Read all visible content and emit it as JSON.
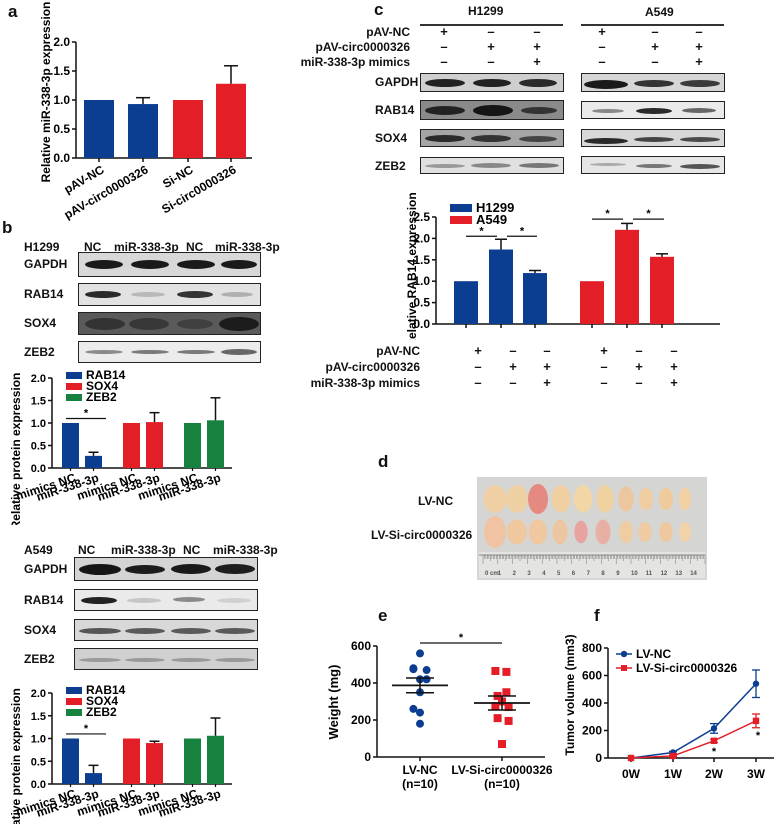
{
  "colors": {
    "blue": "#0b3d91",
    "red": "#e41e26",
    "green": "#17813f",
    "axis": "#111111"
  },
  "panels": {
    "a": {
      "letter": "a",
      "chart": {
        "type": "bar",
        "ylabel": "Relative miR-338-3p expression",
        "ylim": [
          0,
          2.0
        ],
        "yticks": [
          "0.0",
          "0.5",
          "1.0",
          "1.5",
          "2.0"
        ],
        "categories": [
          "pAV-NC",
          "pAV-circ0000326",
          "Si-NC",
          "Si-circ0000326"
        ],
        "values": [
          1.0,
          0.93,
          1.0,
          1.28
        ],
        "errors": [
          0,
          0.11,
          0,
          0.31
        ],
        "bar_colors": [
          "blue",
          "blue",
          "red",
          "red"
        ]
      }
    },
    "b": {
      "letter": "b",
      "h1299": {
        "cell_line": "H1299",
        "lanes": [
          "NC",
          "miR-338-3p",
          "NC",
          "miR-338-3p"
        ],
        "proteins": [
          "GAPDH",
          "RAB14",
          "SOX4",
          "ZEB2"
        ],
        "chart": {
          "type": "bar",
          "ylabel": "Relative protein expression",
          "ylim": [
            0,
            2.0
          ],
          "yticks": [
            "0.0",
            "0.5",
            "1.0",
            "1.5",
            "2.0"
          ],
          "legend": [
            "RAB14",
            "SOX4",
            "ZEB2"
          ],
          "categories": [
            "mimics NC",
            "miR-338-3p",
            "mimics NC",
            "miR-338-3p",
            "mimics NC",
            "miR-338-3p"
          ],
          "values": [
            1.0,
            0.27,
            1.0,
            1.02,
            1.0,
            1.06
          ],
          "errors": [
            0,
            0.08,
            0,
            0.21,
            0,
            0.5
          ],
          "bar_colors": [
            "blue",
            "blue",
            "red",
            "red",
            "green",
            "green"
          ],
          "significance": "*"
        }
      },
      "a549": {
        "cell_line": "A549",
        "lanes": [
          "NC",
          "miR-338-3p",
          "NC",
          "miR-338-3p"
        ],
        "proteins": [
          "GAPDH",
          "RAB14",
          "SOX4",
          "ZEB2"
        ],
        "chart": {
          "type": "bar",
          "ylabel": "Relative protein expression",
          "ylim": [
            0,
            2.0
          ],
          "yticks": [
            "0.0",
            "0.5",
            "1.0",
            "1.5",
            "2.0"
          ],
          "legend": [
            "RAB14",
            "SOX4",
            "ZEB2"
          ],
          "categories": [
            "mimics NC",
            "miR-338-3p",
            "mimics NC",
            "miR-338-3p",
            "mimics NC",
            "miR-338-3p"
          ],
          "values": [
            1.0,
            0.24,
            1.0,
            0.9,
            1.0,
            1.06
          ],
          "errors": [
            0,
            0.17,
            0,
            0.04,
            0,
            0.39
          ],
          "bar_colors": [
            "blue",
            "blue",
            "red",
            "red",
            "green",
            "green"
          ],
          "significance": "*"
        }
      }
    },
    "c": {
      "letter": "c",
      "cell_lines": [
        "H1299",
        "A549"
      ],
      "conditions": [
        "pAV-NC",
        "pAV-circ0000326",
        "miR-338-3p mimics"
      ],
      "matrix": [
        [
          "+",
          "–",
          "–"
        ],
        [
          "–",
          "+",
          "+"
        ],
        [
          "–",
          "–",
          "+"
        ]
      ],
      "proteins": [
        "GAPDH",
        "RAB14",
        "SOX4",
        "ZEB2"
      ],
      "chart": {
        "type": "bar",
        "ylabel": "Relative RAB14 expression",
        "ylim": [
          0,
          2.5
        ],
        "yticks": [
          "0.0",
          "0.5",
          "1.0",
          "1.5",
          "2.0",
          "2.5"
        ],
        "legend": [
          "H1299",
          "A549"
        ],
        "series": [
          {
            "name": "H1299",
            "values": [
              1.0,
              1.74,
              1.19
            ],
            "errors": [
              0,
              0.24,
              0.06
            ]
          },
          {
            "name": "A549",
            "values": [
              1.0,
              2.2,
              1.57
            ],
            "errors": [
              0,
              0.15,
              0.07
            ]
          }
        ],
        "significance": "*"
      }
    },
    "d": {
      "letter": "d",
      "rows": [
        "LV-NC",
        "LV-Si-circ0000326"
      ],
      "ruler_labels": [
        "0 cm",
        "1",
        "2",
        "3",
        "4",
        "5",
        "6",
        "7",
        "8",
        "9",
        "10",
        "11",
        "12",
        "13",
        "14"
      ]
    },
    "e": {
      "letter": "e",
      "chart": {
        "type": "scatter",
        "ylabel": "Weight (mg)",
        "ylim": [
          0,
          600
        ],
        "yticks": [
          "0",
          "200",
          "400",
          "600"
        ],
        "groups": [
          {
            "name": "LV-NC",
            "n_label": "(n=10)",
            "values": [
              560,
              480,
              470,
              475,
              420,
              420,
              350,
              260,
              240,
              180
            ],
            "mean": 387,
            "sem": 40
          },
          {
            "name": "LV-Si-circ0000326",
            "n_label": "(n=10)",
            "values": [
              465,
              460,
              350,
              330,
              300,
              270,
              275,
              210,
              195,
              70
            ],
            "mean": 292,
            "sem": 38
          }
        ],
        "significance": "*"
      }
    },
    "f": {
      "letter": "f",
      "chart": {
        "type": "line",
        "ylabel": "Tumor volume (mm3)",
        "ylim": [
          0,
          800
        ],
        "yticks": [
          "0",
          "200",
          "400",
          "600",
          "800"
        ],
        "x": [
          "0W",
          "1W",
          "2W",
          "3W"
        ],
        "series": [
          {
            "name": "LV-NC",
            "values": [
              0,
              40,
              215,
              540
            ],
            "errors": [
              0,
              8,
              35,
              100
            ]
          },
          {
            "name": "LV-Si-circ0000326",
            "values": [
              0,
              15,
              125,
              270
            ],
            "errors": [
              0,
              5,
              12,
              50
            ]
          }
        ],
        "annotations": [
          "*",
          "*"
        ]
      }
    }
  },
  "chart_data": [
    {
      "type": "bar",
      "title": "a",
      "ylabel": "Relative miR-338-3p expression",
      "ylim": [
        0,
        2.0
      ],
      "categories": [
        "pAV-NC",
        "pAV-circ0000326",
        "Si-NC",
        "Si-circ0000326"
      ],
      "values": [
        1.0,
        0.93,
        1.0,
        1.28
      ],
      "errors": [
        0,
        0.11,
        0,
        0.31
      ]
    },
    {
      "type": "bar",
      "title": "b H1299",
      "ylabel": "Relative protein expression",
      "ylim": [
        0,
        2.0
      ],
      "categories": [
        "mimics NC",
        "miR-338-3p"
      ],
      "series": [
        {
          "name": "RAB14",
          "values": [
            1.0,
            0.27
          ]
        },
        {
          "name": "SOX4",
          "values": [
            1.0,
            1.02
          ]
        },
        {
          "name": "ZEB2",
          "values": [
            1.0,
            1.06
          ]
        }
      ]
    },
    {
      "type": "bar",
      "title": "b A549",
      "ylabel": "Relative protein expression",
      "ylim": [
        0,
        2.0
      ],
      "categories": [
        "mimics NC",
        "miR-338-3p"
      ],
      "series": [
        {
          "name": "RAB14",
          "values": [
            1.0,
            0.24
          ]
        },
        {
          "name": "SOX4",
          "values": [
            1.0,
            0.9
          ]
        },
        {
          "name": "ZEB2",
          "values": [
            1.0,
            1.06
          ]
        }
      ]
    },
    {
      "type": "bar",
      "title": "c",
      "ylabel": "Relative RAB14 expression",
      "ylim": [
        0,
        2.5
      ],
      "categories": [
        "pAV-NC",
        "pAV-circ0000326",
        "pAV-circ0000326 + miR-338-3p mimics"
      ],
      "series": [
        {
          "name": "H1299",
          "values": [
            1.0,
            1.74,
            1.19
          ]
        },
        {
          "name": "A549",
          "values": [
            1.0,
            2.2,
            1.57
          ]
        }
      ]
    },
    {
      "type": "scatter",
      "title": "e",
      "ylabel": "Weight (mg)",
      "ylim": [
        0,
        600
      ],
      "categories": [
        "LV-NC (n=10)",
        "LV-Si-circ0000326 (n=10)"
      ],
      "series": [
        {
          "name": "LV-NC",
          "values": [
            560,
            480,
            470,
            475,
            420,
            420,
            350,
            260,
            240,
            180
          ]
        },
        {
          "name": "LV-Si-circ0000326",
          "values": [
            465,
            460,
            350,
            330,
            300,
            270,
            275,
            210,
            195,
            70
          ]
        }
      ]
    },
    {
      "type": "line",
      "title": "f",
      "ylabel": "Tumor volume (mm3)",
      "ylim": [
        0,
        800
      ],
      "x": [
        "0W",
        "1W",
        "2W",
        "3W"
      ],
      "series": [
        {
          "name": "LV-NC",
          "values": [
            0,
            40,
            215,
            540
          ]
        },
        {
          "name": "LV-Si-circ0000326",
          "values": [
            0,
            15,
            125,
            270
          ]
        }
      ],
      "legend_position": "upper left"
    }
  ]
}
